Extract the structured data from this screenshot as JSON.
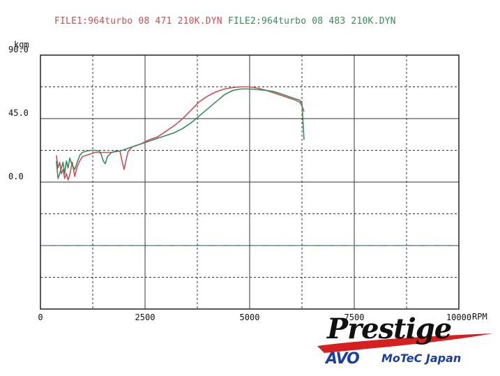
{
  "header": {
    "file1_label": "FILE1:964turbo 08 471 210K.DYN",
    "file2_label": "FILE2:964turbo 08 483 210K.DYN"
  },
  "logo": {
    "brand": "Prestige",
    "sub_brand": "AVO",
    "sub_text": "MoTeC Japan"
  },
  "chart_data": {
    "type": "line",
    "title": "",
    "xlabel": "RPM",
    "ylabel": "kgm",
    "xlim": [
      0,
      10000
    ],
    "ylim": [
      -180,
      180
    ],
    "x_tick_labels": [
      "0",
      "2500",
      "5000",
      "7500",
      "10000"
    ],
    "x_tick_values": [
      0,
      2500,
      5000,
      7500,
      10000
    ],
    "y_tick_labels": [
      "90.0",
      "45.0",
      "0.0"
    ],
    "y_tick_values": [
      180,
      90,
      0
    ],
    "grid": true,
    "colors": {
      "file1": "#c8505a",
      "file2": "#3a8a5a",
      "reference": "#4a6fb0"
    },
    "reference_line": {
      "y": -90
    },
    "series": [
      {
        "name": "FILE1:964turbo 08 471 210K.DYN",
        "color": "#c8505a",
        "x": [
          380,
          420,
          460,
          500,
          540,
          580,
          620,
          660,
          700,
          760,
          820,
          880,
          940,
          1000,
          1100,
          1200,
          1300,
          1400,
          1500,
          1600,
          1700,
          1800,
          1900,
          1950,
          2000,
          2050,
          2100,
          2200,
          2400,
          2600,
          2800,
          3000,
          3200,
          3400,
          3600,
          3800,
          4000,
          4200,
          4400,
          4600,
          4800,
          5000,
          5200,
          5400,
          5600,
          5800,
          6000,
          6100,
          6200,
          6250,
          6300
        ],
        "y": [
          38,
          20,
          28,
          12,
          18,
          5,
          12,
          3,
          10,
          28,
          8,
          22,
          30,
          36,
          38,
          40,
          42,
          42,
          42,
          42,
          42,
          43,
          44,
          30,
          18,
          32,
          44,
          50,
          54,
          60,
          64,
          72,
          80,
          90,
          102,
          114,
          122,
          128,
          132,
          134,
          135,
          135,
          133,
          130,
          126,
          122,
          118,
          116,
          113,
          108,
          100
        ]
      },
      {
        "name": "FILE2:964turbo 08 483 210K.DYN",
        "color": "#3a8a5a",
        "x": [
          380,
          420,
          460,
          500,
          540,
          580,
          620,
          660,
          700,
          760,
          820,
          880,
          940,
          1000,
          1100,
          1200,
          1300,
          1400,
          1450,
          1500,
          1550,
          1600,
          1700,
          1800,
          1900,
          2000,
          2200,
          2400,
          2600,
          2800,
          3000,
          3200,
          3400,
          3600,
          3800,
          4000,
          4200,
          4400,
          4600,
          4800,
          5000,
          5200,
          5400,
          5600,
          5800,
          6000,
          6100,
          6200,
          6250,
          6280,
          6300
        ],
        "y": [
          30,
          5,
          12,
          20,
          28,
          12,
          30,
          20,
          34,
          24,
          18,
          28,
          38,
          42,
          44,
          45,
          45,
          44,
          40,
          30,
          26,
          36,
          42,
          44,
          44,
          46,
          50,
          54,
          58,
          62,
          66,
          70,
          76,
          84,
          94,
          104,
          114,
          124,
          130,
          132,
          132,
          131,
          130,
          128,
          124,
          120,
          118,
          116,
          112,
          80,
          60
        ]
      }
    ]
  }
}
